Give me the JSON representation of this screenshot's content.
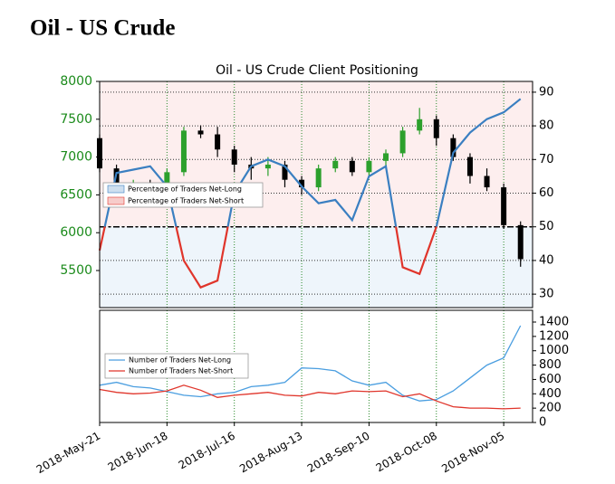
{
  "page_title": "Oil - US Crude",
  "chart_data": [
    {
      "type": "candlestick",
      "title": "Oil - US Crude Client Positioning",
      "x": [
        "2018-05-21",
        "2018-05-28",
        "2018-06-04",
        "2018-06-11",
        "2018-06-18",
        "2018-06-25",
        "2018-07-02",
        "2018-07-09",
        "2018-07-16",
        "2018-07-23",
        "2018-07-30",
        "2018-08-06",
        "2018-08-13",
        "2018-08-20",
        "2018-08-27",
        "2018-09-03",
        "2018-09-10",
        "2018-09-17",
        "2018-09-24",
        "2018-10-01",
        "2018-10-08",
        "2018-10-15",
        "2018-10-22",
        "2018-10-29",
        "2018-11-05",
        "2018-11-12"
      ],
      "open": [
        7250,
        6850,
        6550,
        6600,
        6500,
        6800,
        7350,
        7300,
        7100,
        6900,
        6850,
        6900,
        6700,
        6600,
        6850,
        6950,
        6800,
        6950,
        7050,
        7350,
        7500,
        7250,
        7000,
        6750,
        6600,
        6100
      ],
      "high": [
        7300,
        6900,
        6700,
        6700,
        6850,
        7400,
        7420,
        7400,
        7150,
        7000,
        7000,
        6950,
        6750,
        6900,
        7000,
        7000,
        7000,
        7100,
        7400,
        7650,
        7550,
        7300,
        7050,
        6850,
        6650,
        6150
      ],
      "low": [
        6800,
        6450,
        6450,
        6450,
        6400,
        6750,
        7250,
        7000,
        6800,
        6700,
        6750,
        6600,
        6500,
        6550,
        6800,
        6750,
        6750,
        6850,
        7000,
        7300,
        7150,
        6950,
        6650,
        6550,
        6050,
        5550
      ],
      "close": [
        6850,
        6550,
        6600,
        6500,
        6800,
        7350,
        7300,
        7100,
        6900,
        6850,
        6900,
        6700,
        6600,
        6850,
        6950,
        6800,
        6950,
        7050,
        7350,
        7500,
        7250,
        7000,
        6750,
        6600,
        6100,
        5650
      ],
      "up_color": "#2ca02c",
      "down_color": "#000000",
      "xlim": [
        "2018-05-21",
        "2018-11-17"
      ],
      "xticks": [
        "2018-05-21",
        "2018-06-18",
        "2018-07-16",
        "2018-08-13",
        "2018-09-10",
        "2018-10-08",
        "2018-11-05"
      ],
      "ylim": [
        5010,
        8000
      ],
      "yticks": [
        5500,
        6000,
        6500,
        7000,
        7500,
        8000
      ],
      "y2lim": [
        26,
        93.2
      ],
      "y2ticks": [
        30,
        40,
        50,
        60,
        70,
        80,
        90
      ],
      "sentiment": {
        "axis": "y2",
        "threshold": 50,
        "values": [
          43,
          66,
          67,
          68,
          62,
          40,
          32,
          34,
          60,
          68,
          70,
          68,
          62,
          57,
          58,
          52,
          65,
          68,
          38,
          36,
          50,
          72,
          78,
          82,
          84,
          88
        ],
        "legend": [
          {
            "name": "Percentage of Traders Net-Long",
            "color": "#3a7fc1"
          },
          {
            "name": "Percentage of Traders Net-Short",
            "color": "#e0352b"
          }
        ]
      },
      "grid": true
    },
    {
      "type": "line",
      "x": [
        "2018-05-21",
        "2018-05-28",
        "2018-06-04",
        "2018-06-11",
        "2018-06-18",
        "2018-06-25",
        "2018-07-02",
        "2018-07-09",
        "2018-07-16",
        "2018-07-23",
        "2018-07-30",
        "2018-08-06",
        "2018-08-13",
        "2018-08-20",
        "2018-08-27",
        "2018-09-03",
        "2018-09-10",
        "2018-09-17",
        "2018-09-24",
        "2018-10-01",
        "2018-10-08",
        "2018-10-15",
        "2018-10-22",
        "2018-10-29",
        "2018-11-05",
        "2018-11-12"
      ],
      "series": [
        {
          "name": "Number of Traders Net-Long",
          "color": "#4a9ee0",
          "axis": "y2",
          "values": [
            520,
            560,
            500,
            480,
            430,
            380,
            360,
            400,
            420,
            500,
            520,
            560,
            760,
            750,
            720,
            580,
            520,
            560,
            380,
            300,
            320,
            440,
            620,
            800,
            900,
            1350
          ]
        },
        {
          "name": "Number of Traders Net-Short",
          "color": "#e0352b",
          "axis": "y2",
          "values": [
            460,
            420,
            400,
            410,
            440,
            520,
            450,
            350,
            380,
            400,
            420,
            380,
            370,
            420,
            400,
            440,
            430,
            440,
            360,
            400,
            300,
            220,
            200,
            200,
            190,
            200
          ]
        }
      ],
      "xlim": [
        "2018-05-21",
        "2018-11-17"
      ],
      "xticks": [
        {
          "value": "2018-05-21",
          "label": "2018-May-21"
        },
        {
          "value": "2018-06-18",
          "label": "2018-Jun-18"
        },
        {
          "value": "2018-07-16",
          "label": "2018-Jul-16"
        },
        {
          "value": "2018-08-13",
          "label": "2018-Aug-13"
        },
        {
          "value": "2018-09-10",
          "label": "2018-Sep-10"
        },
        {
          "value": "2018-10-08",
          "label": "2018-Oct-08"
        },
        {
          "value": "2018-11-05",
          "label": "2018-Nov-05"
        }
      ],
      "y2lim": [
        0,
        1564
      ],
      "y2ticks": [
        0,
        200,
        400,
        600,
        800,
        1000,
        1200,
        1400
      ],
      "grid": true
    }
  ]
}
